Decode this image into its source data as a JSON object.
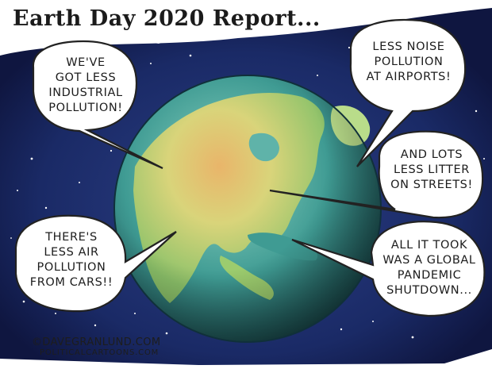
{
  "title": "Earth Day 2020 Report...",
  "bubbles": {
    "industrial": [
      "WE'VE",
      "GOT LESS",
      "INDUSTRIAL",
      "POLLUTION!"
    ],
    "noise": [
      "LESS NOISE",
      "POLLUTION",
      "AT AIRPORTS!"
    ],
    "litter": [
      "AND LOTS",
      "LESS LITTER",
      "ON STREETS!"
    ],
    "air": [
      "THERE'S",
      "LESS AIR",
      "POLLUTION",
      "FROM CARS!!"
    ],
    "pandemic": [
      "ALL IT TOOK",
      "WAS A GLOBAL",
      "PANDEMIC",
      "SHUTDOWN..."
    ]
  },
  "credit": {
    "line1": "©DAVEGRANLUND.COM",
    "line2": "POLITICALCARTOONS.COM"
  },
  "colors": {
    "space": "#1a2a66",
    "ocean": "#3f9b93",
    "land_light": "#c8e07a",
    "land_warm": "#e9b56a"
  },
  "icons": {
    "globe": "earth-globe-icon",
    "stars": "starfield-decoration"
  }
}
